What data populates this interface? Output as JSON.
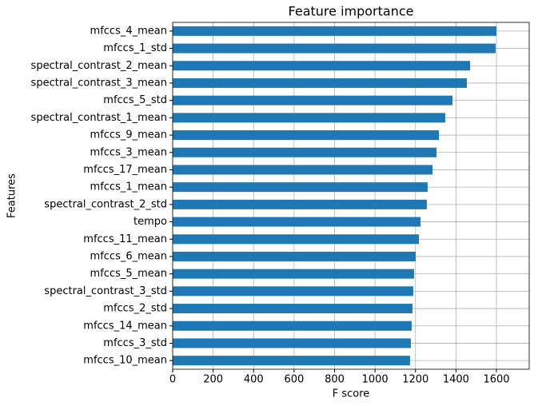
{
  "chart_data": {
    "type": "barh",
    "title": "Feature importance",
    "xlabel": "F score",
    "ylabel": "Features",
    "categories": [
      "mfccs_4_mean",
      "mfccs_1_std",
      "spectral_contrast_2_mean",
      "spectral_contrast_3_mean",
      "mfccs_5_std",
      "spectral_contrast_1_mean",
      "mfccs_9_mean",
      "mfccs_3_mean",
      "mfccs_17_mean",
      "mfccs_1_mean",
      "spectral_contrast_2_std",
      "tempo",
      "mfccs_11_mean",
      "mfccs_6_mean",
      "mfccs_5_mean",
      "spectral_contrast_3_std",
      "mfccs_2_std",
      "mfccs_14_mean",
      "mfccs_3_std",
      "mfccs_10_mean"
    ],
    "values": [
      1600,
      1596,
      1470,
      1454,
      1383,
      1347,
      1316,
      1304,
      1284,
      1260,
      1256,
      1225,
      1217,
      1201,
      1193,
      1189,
      1185,
      1181,
      1177,
      1173
    ],
    "color": "#1f77b4",
    "xlim": [
      0,
      1762
    ],
    "xticks": [
      0,
      200,
      400,
      600,
      800,
      1000,
      1200,
      1400,
      1600
    ],
    "grid": true
  }
}
